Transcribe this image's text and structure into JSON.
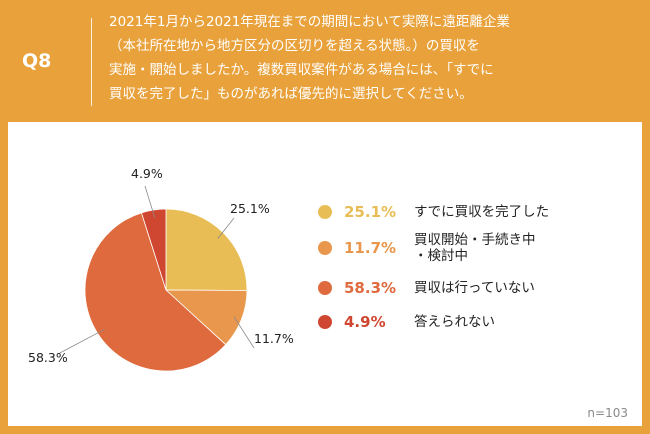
{
  "question": {
    "id": "Q8",
    "lines": [
      "2021年1月から2021年現在までの期間において実際に遠距離企業",
      "（本社所在地から地方区分の区切りを超える状態。）の買収を",
      "実施・開始しましたか。複数買収案件がある場合には、「すでに",
      "買収を完了した」ものがあれば優先的に選択してください。"
    ]
  },
  "chart_data": {
    "type": "pie",
    "slices": [
      {
        "label_lines": [
          "すでに買収を完了した"
        ],
        "value": 25.1,
        "display": "25.1%",
        "color": "#e8bd55"
      },
      {
        "label_lines": [
          "買収開始・手続き中",
          "・検討中"
        ],
        "value": 11.7,
        "display": "11.7%",
        "color": "#e8974c"
      },
      {
        "label_lines": [
          "買収は行っていない"
        ],
        "value": 58.3,
        "display": "58.3%",
        "color": "#df6a3e"
      },
      {
        "label_lines": [
          "答えられない"
        ],
        "value": 4.9,
        "display": "4.9%",
        "color": "#cf4730"
      }
    ]
  },
  "sample_note": "n=103",
  "colors": {
    "header": "#e9a23b",
    "leader_line": "#8a8a8a"
  }
}
